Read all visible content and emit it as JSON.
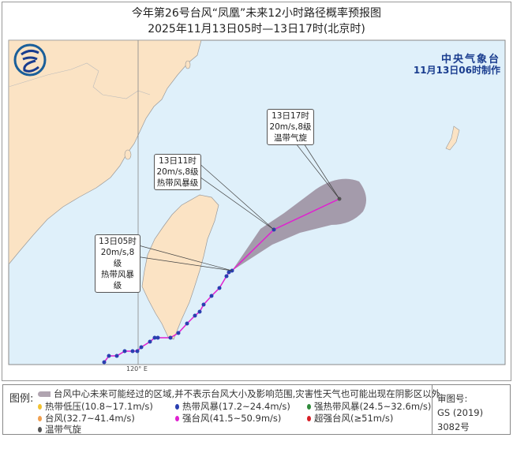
{
  "title": {
    "line1": "今年第26号台风“凤凰”未来12小时路径概率预报图",
    "line2": "2025年11月13日05时—13日17时(北京时)"
  },
  "producer": {
    "name": "中央气象台",
    "issued": "11月13日06时制作"
  },
  "map": {
    "longitude_label": "120° E",
    "colors": {
      "land": "#fbe3c4",
      "sea": "#dff0fa",
      "cone": "#8e7a8c",
      "track": "#e020d0",
      "point": "#2a3fb0"
    },
    "track_labels": [
      {
        "time": "13日05时",
        "wind": "20m/s,8级",
        "type": "热带风暴级"
      },
      {
        "time": "13日11时",
        "wind": "20m/s,8级",
        "type": "热带风暴级"
      },
      {
        "time": "13日17时",
        "wind": "20m/s,8级",
        "type": "温带气旋"
      }
    ]
  },
  "legend": {
    "caption": "图例:",
    "cone_text": "台风中心未来可能经过的区域,并不表示台风大小及影响范围,灾害性天气也可能出现在阴影区以外",
    "items": [
      {
        "label": "热带低压(10.8~17.1m/s)",
        "color": "#f2c230"
      },
      {
        "label": "热带风暴(17.2~24.4m/s)",
        "color": "#2a3fb0"
      },
      {
        "label": "强热带风暴(24.5~32.6m/s)",
        "color": "#2f8a3a"
      },
      {
        "label": "台风(32.7~41.4m/s)",
        "color": "#f0a050"
      },
      {
        "label": "强台风(41.5~50.9m/s)",
        "color": "#e020d0"
      },
      {
        "label": "超强台风(≥51m/s)",
        "color": "#d81f26"
      },
      {
        "label": "温带气旋",
        "color": "#555555"
      }
    ],
    "approval_label": "审图号:",
    "approval_number": "GS (2019) 3082号"
  }
}
